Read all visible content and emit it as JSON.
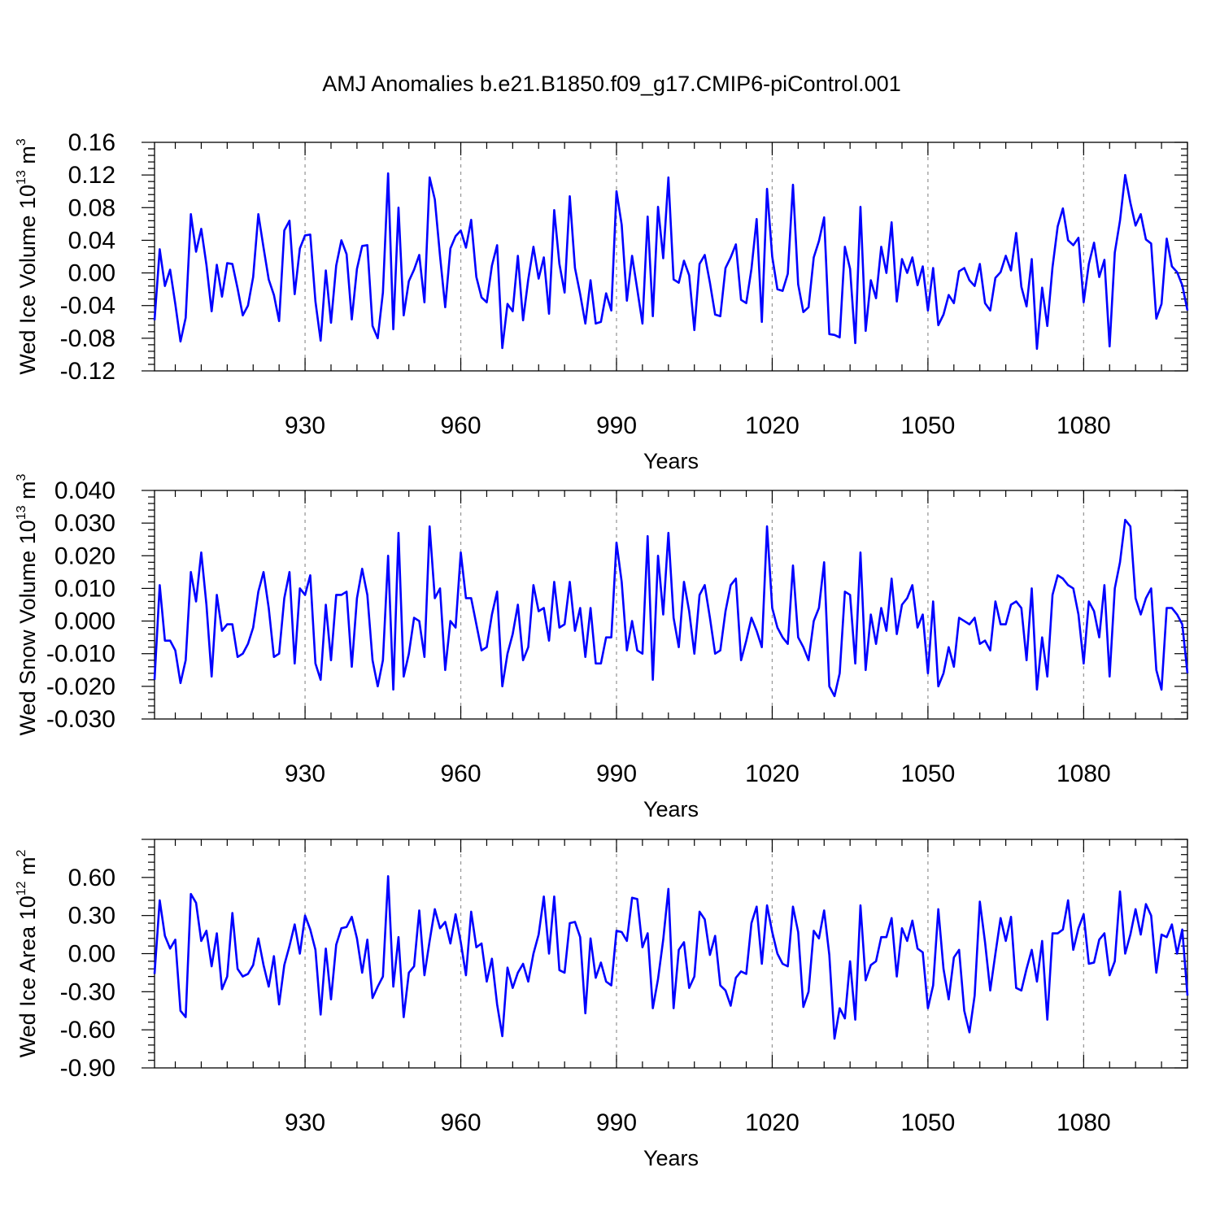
{
  "page": {
    "title": "AMJ Anomalies b.e21.B1850.f09_g17.CMIP6-piControl.001"
  },
  "colors": {
    "line": "#0000ff",
    "axes": "#000000",
    "grid": "#9a9a9a",
    "background": "#ffffff"
  },
  "chart_data": [
    {
      "type": "line",
      "title": "AMJ Anomalies b.e21.B1850.f09_g17.CMIP6-piControl.001",
      "xlabel": "Years",
      "ylabel": "Wed Ice Volume 10",
      "ylabel_exp": "13",
      "ylabel_unit": " m",
      "ylabel_unit_exp": "3",
      "xlim": [
        901,
        1100
      ],
      "ylim": [
        -0.12,
        0.16
      ],
      "xticks": [
        930,
        960,
        990,
        1020,
        1050,
        1080
      ],
      "xtick_labels": [
        "930",
        "960",
        "990",
        "1020",
        "1050",
        "1080"
      ],
      "yticks": [
        -0.12,
        -0.08,
        -0.04,
        0.0,
        0.04,
        0.08,
        0.12,
        0.16
      ],
      "ytick_labels": [
        "-0.12",
        "-0.08",
        "-0.04",
        "0.00",
        "0.04",
        "0.08",
        "0.12",
        "0.16"
      ],
      "grid": "vertical dashed at major x ticks",
      "x_start": 901,
      "values": [
        -0.058,
        0.029,
        -0.016,
        0.004,
        -0.038,
        -0.084,
        -0.055,
        0.072,
        0.026,
        0.054,
        0.01,
        -0.047,
        0.01,
        -0.029,
        0.012,
        0.011,
        -0.019,
        -0.052,
        -0.04,
        -0.005,
        0.072,
        0.031,
        -0.008,
        -0.027,
        -0.059,
        0.052,
        0.064,
        -0.026,
        0.03,
        0.046,
        0.047,
        -0.035,
        -0.083,
        0.003,
        -0.061,
        0.009,
        0.04,
        0.023,
        -0.057,
        0.005,
        0.033,
        0.034,
        -0.065,
        -0.08,
        -0.024,
        0.122,
        -0.069,
        0.08,
        -0.052,
        -0.01,
        0.004,
        0.022,
        -0.036,
        0.117,
        0.09,
        0.021,
        -0.042,
        0.03,
        0.045,
        0.052,
        0.031,
        0.065,
        -0.005,
        -0.03,
        -0.036,
        0.009,
        0.034,
        -0.092,
        -0.038,
        -0.047,
        0.021,
        -0.058,
        -0.008,
        0.032,
        -0.007,
        0.019,
        -0.05,
        0.077,
        0.011,
        -0.024,
        0.094,
        0.006,
        -0.026,
        -0.062,
        -0.009,
        -0.062,
        -0.06,
        -0.025,
        -0.046,
        0.1,
        0.059,
        -0.034,
        0.021,
        -0.02,
        -0.062,
        0.069,
        -0.053,
        0.081,
        0.018,
        0.117,
        -0.008,
        -0.012,
        0.015,
        -0.003,
        -0.07,
        0.011,
        0.022,
        -0.012,
        -0.051,
        -0.053,
        0.006,
        0.019,
        0.035,
        -0.033,
        -0.037,
        0.005,
        0.066,
        -0.06,
        0.103,
        0.02,
        -0.02,
        -0.022,
        -0.001,
        0.108,
        -0.014,
        -0.048,
        -0.042,
        0.019,
        0.039,
        0.068,
        -0.075,
        -0.076,
        -0.079,
        0.032,
        0.005,
        -0.086,
        0.081,
        -0.071,
        -0.009,
        -0.031,
        0.032,
        0.0,
        0.062,
        -0.035,
        0.017,
        0.0,
        0.019,
        -0.015,
        0.008,
        -0.046,
        0.006,
        -0.064,
        -0.051,
        -0.027,
        -0.037,
        0.002,
        0.006,
        -0.009,
        -0.016,
        0.011,
        -0.037,
        -0.046,
        -0.006,
        0.001,
        0.021,
        0.003,
        0.049,
        -0.017,
        -0.041,
        0.017,
        -0.093,
        -0.018,
        -0.065,
        0.007,
        0.057,
        0.079,
        0.04,
        0.034,
        0.043,
        -0.036,
        0.011,
        0.037,
        -0.005,
        0.016,
        -0.09,
        0.025,
        0.064,
        0.12,
        0.086,
        0.058,
        0.072,
        0.041,
        0.036,
        -0.056,
        -0.038,
        0.042,
        0.008,
        0.001,
        -0.015,
        -0.046
      ]
    },
    {
      "type": "line",
      "xlabel": "Years",
      "ylabel": "Wed Snow Volume 10",
      "ylabel_exp": "13",
      "ylabel_unit": " m",
      "ylabel_unit_exp": "3",
      "xlim": [
        901,
        1100
      ],
      "ylim": [
        -0.03,
        0.04
      ],
      "xticks": [
        930,
        960,
        990,
        1020,
        1050,
        1080
      ],
      "xtick_labels": [
        "930",
        "960",
        "990",
        "1020",
        "1050",
        "1080"
      ],
      "yticks": [
        -0.03,
        -0.02,
        -0.01,
        0.0,
        0.01,
        0.02,
        0.03,
        0.04
      ],
      "ytick_labels": [
        "-0.030",
        "-0.020",
        "-0.010",
        "0.000",
        "0.010",
        "0.020",
        "0.030",
        "0.040"
      ],
      "grid": "vertical dashed at major x ticks",
      "x_start": 901,
      "values": [
        -0.018,
        0.011,
        -0.006,
        -0.006,
        -0.009,
        -0.019,
        -0.012,
        0.015,
        0.006,
        0.021,
        0.005,
        -0.017,
        0.008,
        -0.003,
        -0.001,
        -0.001,
        -0.011,
        -0.01,
        -0.007,
        -0.002,
        0.009,
        0.015,
        0.004,
        -0.011,
        -0.01,
        0.007,
        0.015,
        -0.013,
        0.01,
        0.008,
        0.014,
        -0.013,
        -0.018,
        0.005,
        -0.012,
        0.008,
        0.008,
        0.009,
        -0.014,
        0.007,
        0.016,
        0.008,
        -0.012,
        -0.02,
        -0.012,
        0.02,
        -0.021,
        0.027,
        -0.017,
        -0.01,
        0.001,
        0.0,
        -0.011,
        0.029,
        0.007,
        0.01,
        -0.015,
        0.0,
        -0.002,
        0.021,
        0.007,
        0.007,
        -0.001,
        -0.009,
        -0.008,
        0.002,
        0.009,
        -0.02,
        -0.01,
        -0.004,
        0.005,
        -0.012,
        -0.008,
        0.011,
        0.003,
        0.004,
        -0.006,
        0.012,
        -0.002,
        -0.001,
        0.012,
        -0.003,
        0.004,
        -0.011,
        0.004,
        -0.013,
        -0.013,
        -0.005,
        -0.005,
        0.024,
        0.012,
        -0.009,
        0.0,
        -0.009,
        -0.01,
        0.026,
        -0.018,
        0.02,
        0.002,
        0.027,
        0.001,
        -0.008,
        0.012,
        0.003,
        -0.01,
        0.008,
        0.011,
        0.001,
        -0.01,
        -0.009,
        0.003,
        0.011,
        0.013,
        -0.012,
        -0.006,
        0.001,
        -0.003,
        -0.008,
        0.029,
        0.004,
        -0.002,
        -0.005,
        -0.007,
        0.017,
        -0.005,
        -0.008,
        -0.012,
        0.0,
        0.004,
        0.018,
        -0.02,
        -0.023,
        -0.016,
        0.009,
        0.008,
        -0.013,
        0.021,
        -0.015,
        0.002,
        -0.007,
        0.004,
        -0.003,
        0.013,
        -0.004,
        0.005,
        0.007,
        0.011,
        -0.002,
        0.002,
        -0.016,
        0.006,
        -0.02,
        -0.016,
        -0.008,
        -0.014,
        0.001,
        0.0,
        -0.001,
        0.001,
        -0.007,
        -0.006,
        -0.009,
        0.006,
        -0.001,
        -0.001,
        0.005,
        0.006,
        0.004,
        -0.012,
        0.01,
        -0.021,
        -0.005,
        -0.017,
        0.008,
        0.014,
        0.013,
        0.011,
        0.01,
        0.002,
        -0.013,
        0.006,
        0.003,
        -0.005,
        0.011,
        -0.017,
        0.01,
        0.018,
        0.031,
        0.029,
        0.007,
        0.002,
        0.007,
        0.01,
        -0.015,
        -0.021,
        0.004,
        0.004,
        0.002,
        -0.001,
        -0.016
      ]
    },
    {
      "type": "line",
      "xlabel": "Years",
      "ylabel": "Wed Ice Area 10",
      "ylabel_exp": "12",
      "ylabel_unit": " m",
      "ylabel_unit_exp": "2",
      "xlim": [
        901,
        1100
      ],
      "ylim": [
        -0.9,
        0.9
      ],
      "xticks": [
        930,
        960,
        990,
        1020,
        1050,
        1080
      ],
      "xtick_labels": [
        "930",
        "960",
        "990",
        "1020",
        "1050",
        "1080"
      ],
      "yticks": [
        -0.9,
        -0.6,
        -0.3,
        0.0,
        0.3,
        0.6
      ],
      "ytick_labels": [
        "-0.90",
        "-0.60",
        "-0.30",
        "0.00",
        "0.30",
        "0.60"
      ],
      "grid": "vertical dashed at major x ticks",
      "x_start": 901,
      "values": [
        -0.16,
        0.42,
        0.14,
        0.04,
        0.11,
        -0.45,
        -0.5,
        0.47,
        0.4,
        0.1,
        0.18,
        -0.1,
        0.16,
        -0.28,
        -0.18,
        0.32,
        -0.12,
        -0.18,
        -0.16,
        -0.09,
        0.12,
        -0.09,
        -0.26,
        -0.02,
        -0.4,
        -0.09,
        0.06,
        0.23,
        0.0,
        0.3,
        0.19,
        0.03,
        -0.48,
        0.04,
        -0.36,
        0.07,
        0.2,
        0.21,
        0.29,
        0.12,
        -0.15,
        0.11,
        -0.35,
        -0.26,
        -0.18,
        0.61,
        -0.26,
        0.13,
        -0.5,
        -0.15,
        -0.1,
        0.34,
        -0.17,
        0.1,
        0.35,
        0.2,
        0.25,
        0.08,
        0.31,
        0.09,
        -0.17,
        0.33,
        0.05,
        0.08,
        -0.22,
        -0.04,
        -0.4,
        -0.65,
        -0.11,
        -0.27,
        -0.15,
        -0.08,
        -0.22,
        0.0,
        0.15,
        0.45,
        0.0,
        0.45,
        -0.13,
        -0.15,
        0.24,
        0.25,
        0.13,
        -0.47,
        0.12,
        -0.19,
        -0.07,
        -0.22,
        -0.25,
        0.18,
        0.17,
        0.1,
        0.44,
        0.43,
        0.05,
        0.16,
        -0.43,
        -0.2,
        0.11,
        0.51,
        -0.43,
        0.03,
        0.09,
        -0.27,
        -0.18,
        0.33,
        0.27,
        -0.01,
        0.14,
        -0.25,
        -0.29,
        -0.41,
        -0.19,
        -0.14,
        -0.16,
        0.24,
        0.37,
        -0.08,
        0.38,
        0.17,
        0.0,
        -0.08,
        -0.1,
        0.37,
        0.17,
        -0.42,
        -0.3,
        0.18,
        0.12,
        0.34,
        -0.01,
        -0.67,
        -0.43,
        -0.51,
        -0.06,
        -0.52,
        0.38,
        -0.21,
        -0.09,
        -0.06,
        0.13,
        0.13,
        0.28,
        -0.18,
        0.2,
        0.1,
        0.26,
        0.04,
        0.01,
        -0.43,
        -0.25,
        0.35,
        -0.12,
        -0.36,
        -0.03,
        0.03,
        -0.45,
        -0.62,
        -0.33,
        0.41,
        0.09,
        -0.29,
        0.0,
        0.28,
        0.1,
        0.29,
        -0.27,
        -0.29,
        -0.12,
        0.03,
        -0.22,
        0.1,
        -0.52,
        0.16,
        0.16,
        0.19,
        0.42,
        0.03,
        0.2,
        0.31,
        -0.08,
        -0.07,
        0.11,
        0.16,
        -0.17,
        -0.06,
        0.49,
        0.0,
        0.15,
        0.35,
        0.15,
        0.39,
        0.3,
        -0.15,
        0.15,
        0.13,
        0.23,
        0.0,
        0.19,
        -0.33
      ]
    }
  ]
}
